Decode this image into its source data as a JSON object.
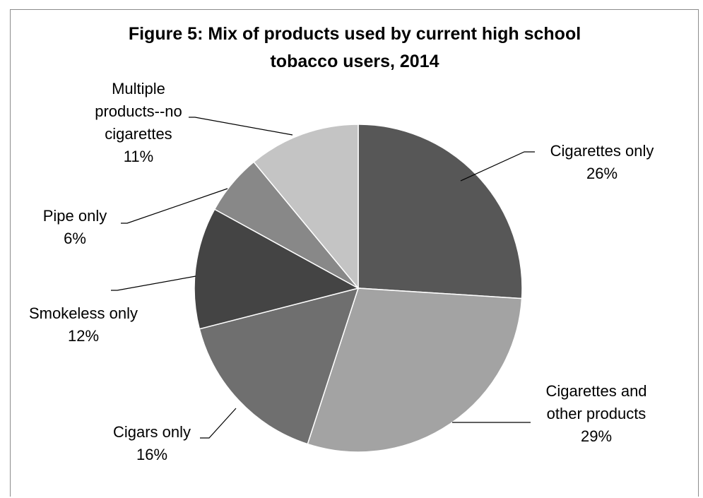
{
  "chart_data": {
    "type": "pie",
    "title": "Figure 5: Mix of products used by current high school tobacco users, 2014",
    "title_lines": [
      "Figure 5: Mix of products used by current high school",
      "tobacco users, 2014"
    ],
    "start": "12 o'clock, clockwise",
    "slices": [
      {
        "name": "Cigarettes only",
        "value": 26,
        "pct_label": "26%",
        "label_lines": [
          "Cigarettes only"
        ],
        "color": "#575757"
      },
      {
        "name": "Cigarettes and other products",
        "value": 29,
        "pct_label": "29%",
        "label_lines": [
          "Cigarettes and",
          "other products"
        ],
        "color": "#a3a3a3"
      },
      {
        "name": "Cigars only",
        "value": 16,
        "pct_label": "16%",
        "label_lines": [
          "Cigars only"
        ],
        "color": "#6f6f6f"
      },
      {
        "name": "Smokeless only",
        "value": 12,
        "pct_label": "12%",
        "label_lines": [
          "Smokeless only"
        ],
        "color": "#444444"
      },
      {
        "name": "Pipe only",
        "value": 6,
        "pct_label": "6%",
        "label_lines": [
          "Pipe only"
        ],
        "color": "#888888"
      },
      {
        "name": "Multiple products--no cigarettes",
        "value": 11,
        "pct_label": "11%",
        "label_lines": [
          "Multiple",
          "products--no",
          "cigarettes"
        ],
        "color": "#c4c4c4"
      }
    ]
  }
}
